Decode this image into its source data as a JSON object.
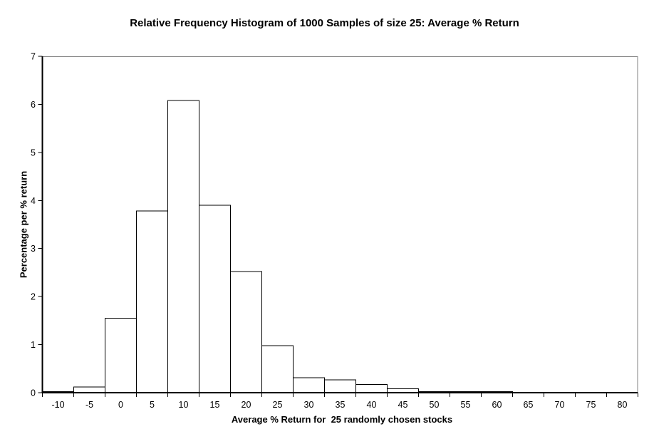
{
  "chart_data": {
    "type": "bar",
    "subtype": "relative-frequency-histogram",
    "title": "Relative Frequency Histogram of 1000 Samples of size 25: Average % Return",
    "xlabel": "Average % Return for  25 randomly chosen stocks",
    "ylabel": "Percentage per % return",
    "categories": [
      -10,
      -5,
      0,
      5,
      10,
      15,
      20,
      25,
      30,
      35,
      40,
      45,
      50,
      55,
      60,
      65,
      70,
      75,
      80
    ],
    "values": [
      0.02,
      0.12,
      1.55,
      3.78,
      6.08,
      3.9,
      2.52,
      0.98,
      0.31,
      0.27,
      0.17,
      0.08,
      0.02,
      0.02,
      0.02,
      0,
      0,
      0,
      0
    ],
    "bin_width": 5,
    "xlim": [
      -12.5,
      82.5
    ],
    "ylim": [
      0,
      7
    ],
    "yticks": [
      0,
      1,
      2,
      3,
      4,
      5,
      6,
      7
    ],
    "grid": false,
    "legend_position": "none",
    "colors": {
      "background": "#ffffff",
      "bar_fill": "#ffffff",
      "bar_stroke": "#000000",
      "axis": "#000000",
      "frame": "#808080",
      "text": "#000000"
    }
  }
}
